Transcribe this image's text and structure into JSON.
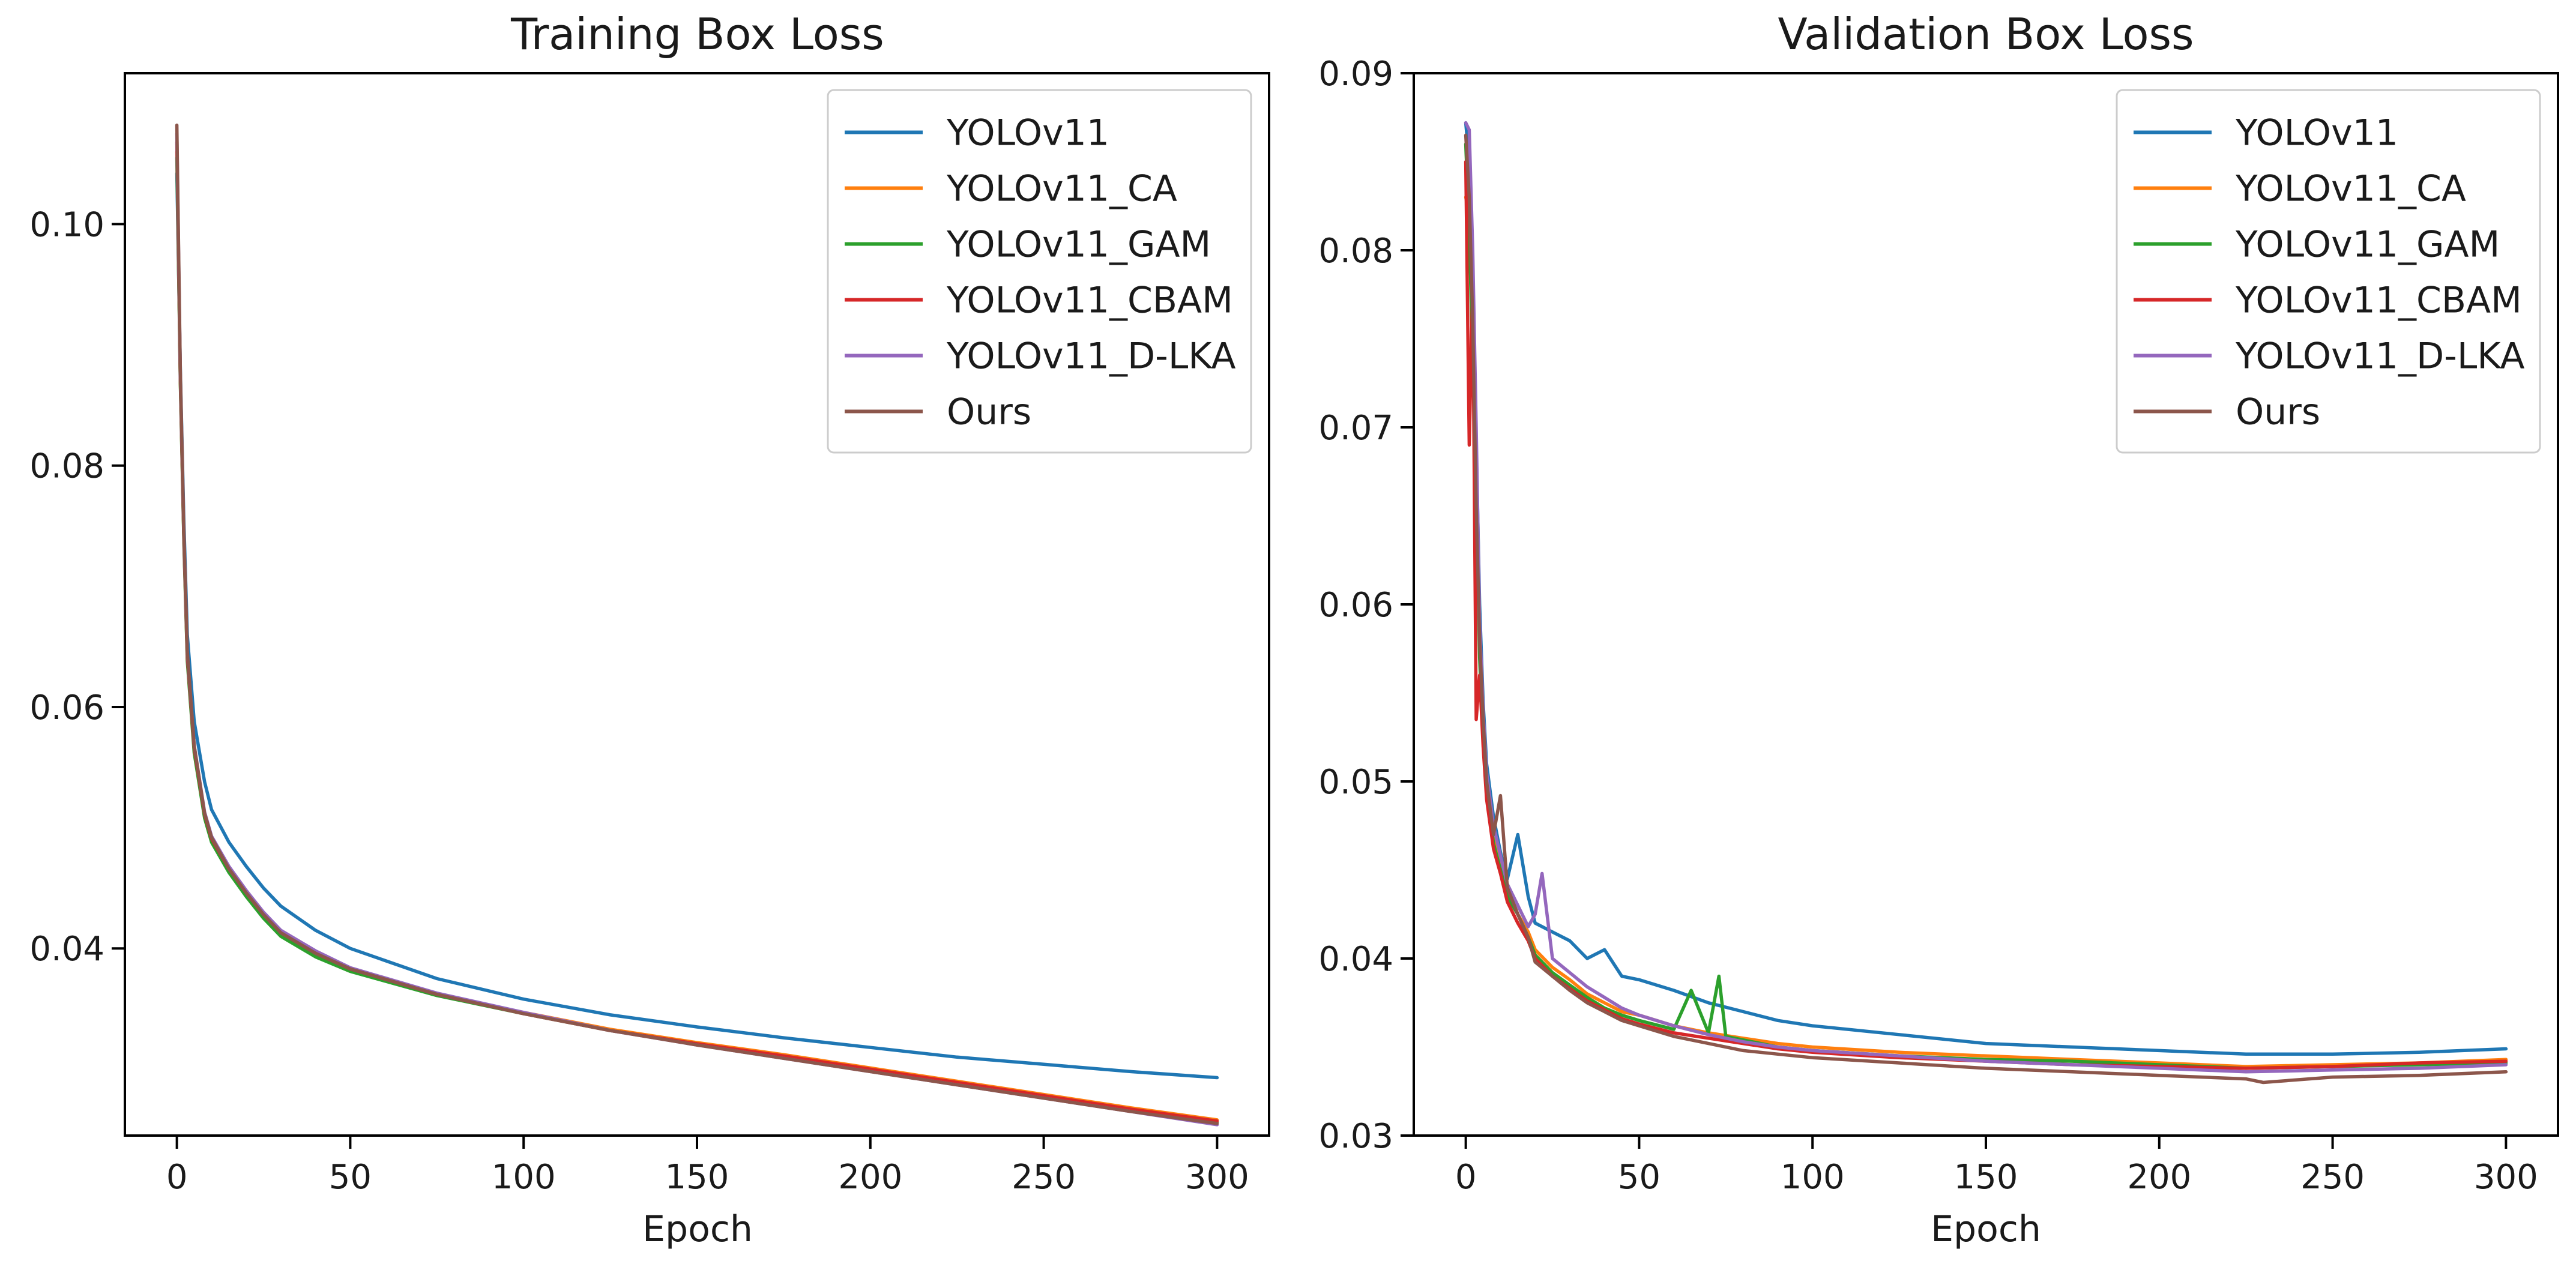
{
  "chart_data": [
    {
      "type": "line",
      "title": "Training Box Loss",
      "xlabel": "Epoch",
      "ylabel": "",
      "xlim": [
        -15,
        315
      ],
      "ylim": [
        0.0245,
        0.1125
      ],
      "xticks": [
        0,
        50,
        100,
        150,
        200,
        250,
        300
      ],
      "xtick_labels": [
        "0",
        "50",
        "100",
        "150",
        "200",
        "250",
        "300"
      ],
      "yticks": [
        0.04,
        0.06,
        0.08,
        0.1
      ],
      "ytick_labels": [
        "0.04",
        "0.06",
        "0.08",
        "0.10"
      ],
      "legend_position": "top-right",
      "grid": false,
      "series": [
        {
          "name": "YOLOv11",
          "color": "#1f77b4",
          "x": [
            0,
            1,
            2,
            3,
            5,
            8,
            10,
            15,
            20,
            25,
            30,
            40,
            50,
            75,
            100,
            125,
            150,
            175,
            200,
            225,
            250,
            275,
            300
          ],
          "values": [
            0.1042,
            0.088,
            0.0755,
            0.066,
            0.0588,
            0.0538,
            0.0515,
            0.0488,
            0.0468,
            0.045,
            0.0435,
            0.0415,
            0.04,
            0.0375,
            0.0358,
            0.0345,
            0.0335,
            0.0326,
            0.0318,
            0.031,
            0.0304,
            0.0298,
            0.0293
          ]
        },
        {
          "name": "YOLOv11_CA",
          "color": "#ff7f0e",
          "x": [
            0,
            1,
            2,
            3,
            5,
            8,
            10,
            15,
            20,
            25,
            30,
            40,
            50,
            75,
            100,
            125,
            150,
            175,
            200,
            225,
            250,
            275,
            300
          ],
          "values": [
            0.106,
            0.087,
            0.074,
            0.064,
            0.0565,
            0.051,
            0.049,
            0.0465,
            0.0445,
            0.0427,
            0.0412,
            0.0395,
            0.0382,
            0.0362,
            0.0347,
            0.0333,
            0.0322,
            0.0312,
            0.0301,
            0.029,
            0.0279,
            0.0268,
            0.0258
          ]
        },
        {
          "name": "YOLOv11_GAM",
          "color": "#2ca02c",
          "x": [
            0,
            1,
            2,
            3,
            5,
            8,
            10,
            15,
            20,
            25,
            30,
            40,
            50,
            75,
            100,
            125,
            150,
            175,
            200,
            225,
            250,
            275,
            300
          ],
          "values": [
            0.1055,
            0.0868,
            0.0738,
            0.0638,
            0.0562,
            0.0508,
            0.0488,
            0.0463,
            0.0443,
            0.0425,
            0.041,
            0.0393,
            0.0381,
            0.0361,
            0.0346,
            0.0332,
            0.0321,
            0.031,
            0.0299,
            0.0288,
            0.0277,
            0.0266,
            0.0256
          ]
        },
        {
          "name": "YOLOv11_CBAM",
          "color": "#d62728",
          "x": [
            0,
            1,
            2,
            3,
            5,
            8,
            10,
            15,
            20,
            25,
            30,
            40,
            50,
            75,
            100,
            125,
            150,
            175,
            200,
            225,
            250,
            275,
            300
          ],
          "values": [
            0.1068,
            0.0872,
            0.0742,
            0.0642,
            0.0566,
            0.0511,
            0.0491,
            0.0466,
            0.0446,
            0.0428,
            0.0413,
            0.0396,
            0.0383,
            0.0362,
            0.0346,
            0.0332,
            0.0321,
            0.0311,
            0.03,
            0.0289,
            0.0278,
            0.0267,
            0.0257
          ]
        },
        {
          "name": "YOLOv11_D-LKA",
          "color": "#9467bd",
          "x": [
            0,
            1,
            2,
            3,
            5,
            8,
            10,
            15,
            20,
            25,
            30,
            40,
            50,
            75,
            100,
            125,
            150,
            175,
            200,
            225,
            250,
            275,
            300
          ],
          "values": [
            0.1075,
            0.0875,
            0.0745,
            0.0645,
            0.0568,
            0.0513,
            0.0493,
            0.0468,
            0.0448,
            0.043,
            0.0415,
            0.0398,
            0.0384,
            0.0363,
            0.0347,
            0.0332,
            0.032,
            0.0309,
            0.0298,
            0.0287,
            0.0276,
            0.0265,
            0.0254
          ]
        },
        {
          "name": "Ours",
          "color": "#8c564b",
          "x": [
            0,
            1,
            2,
            3,
            5,
            8,
            10,
            15,
            20,
            25,
            30,
            40,
            50,
            75,
            100,
            125,
            150,
            175,
            200,
            225,
            250,
            275,
            300
          ],
          "values": [
            0.1082,
            0.0878,
            0.0746,
            0.0646,
            0.0568,
            0.0512,
            0.0492,
            0.0466,
            0.0446,
            0.0428,
            0.0413,
            0.0396,
            0.0383,
            0.0362,
            0.0346,
            0.0332,
            0.032,
            0.0309,
            0.0298,
            0.0287,
            0.0276,
            0.0265,
            0.0255
          ]
        }
      ]
    },
    {
      "type": "line",
      "title": "Validation Box Loss",
      "xlabel": "Epoch",
      "ylabel": "",
      "xlim": [
        -15,
        315
      ],
      "ylim": [
        0.03,
        0.09
      ],
      "xticks": [
        0,
        50,
        100,
        150,
        200,
        250,
        300
      ],
      "xtick_labels": [
        "0",
        "50",
        "100",
        "150",
        "200",
        "250",
        "300"
      ],
      "yticks": [
        0.03,
        0.04,
        0.05,
        0.06,
        0.07,
        0.08,
        0.09
      ],
      "ytick_labels": [
        "0.03",
        "0.04",
        "0.05",
        "0.06",
        "0.07",
        "0.08",
        "0.09"
      ],
      "legend_position": "top-right",
      "grid": false,
      "series": [
        {
          "name": "YOLOv11",
          "color": "#1f77b4",
          "x": [
            0,
            1,
            2,
            3,
            4,
            5,
            6,
            8,
            10,
            12,
            15,
            18,
            20,
            25,
            30,
            35,
            40,
            45,
            50,
            60,
            70,
            80,
            90,
            100,
            125,
            150,
            175,
            200,
            225,
            250,
            275,
            300
          ],
          "values": [
            0.0872,
            0.085,
            0.079,
            0.069,
            0.06,
            0.0545,
            0.051,
            0.048,
            0.046,
            0.0445,
            0.047,
            0.0435,
            0.042,
            0.0415,
            0.041,
            0.04,
            0.0405,
            0.039,
            0.0388,
            0.0382,
            0.0375,
            0.037,
            0.0365,
            0.0362,
            0.0357,
            0.0352,
            0.035,
            0.0348,
            0.0346,
            0.0346,
            0.0347,
            0.0349
          ]
        },
        {
          "name": "YOLOv11_CA",
          "color": "#ff7f0e",
          "x": [
            0,
            1,
            2,
            3,
            4,
            5,
            6,
            8,
            10,
            12,
            15,
            18,
            20,
            25,
            30,
            35,
            40,
            45,
            50,
            60,
            70,
            80,
            90,
            100,
            125,
            150,
            175,
            200,
            225,
            250,
            275,
            300
          ],
          "values": [
            0.083,
            0.082,
            0.076,
            0.068,
            0.058,
            0.053,
            0.05,
            0.047,
            0.0455,
            0.044,
            0.0425,
            0.0415,
            0.0405,
            0.0395,
            0.0388,
            0.038,
            0.0375,
            0.037,
            0.0368,
            0.0362,
            0.0358,
            0.0355,
            0.0352,
            0.035,
            0.0347,
            0.0345,
            0.0343,
            0.0341,
            0.0339,
            0.034,
            0.0341,
            0.0343
          ]
        },
        {
          "name": "YOLOv11_GAM",
          "color": "#2ca02c",
          "x": [
            0,
            1,
            2,
            3,
            4,
            5,
            6,
            8,
            10,
            12,
            15,
            18,
            20,
            25,
            30,
            35,
            40,
            45,
            50,
            60,
            65,
            70,
            73,
            75,
            80,
            90,
            100,
            125,
            150,
            175,
            200,
            225,
            250,
            275,
            300
          ],
          "values": [
            0.086,
            0.081,
            0.074,
            0.066,
            0.057,
            0.0525,
            0.0495,
            0.0465,
            0.045,
            0.0435,
            0.0425,
            0.0412,
            0.0402,
            0.0392,
            0.0385,
            0.0378,
            0.0372,
            0.0368,
            0.0365,
            0.036,
            0.0382,
            0.0358,
            0.039,
            0.0356,
            0.0354,
            0.035,
            0.0348,
            0.0345,
            0.0343,
            0.0342,
            0.034,
            0.0338,
            0.0339,
            0.034,
            0.0341
          ]
        },
        {
          "name": "YOLOv11_CBAM",
          "color": "#d62728",
          "x": [
            0,
            1,
            2,
            3,
            4,
            5,
            6,
            8,
            10,
            12,
            15,
            18,
            20,
            25,
            30,
            35,
            40,
            45,
            50,
            60,
            70,
            80,
            90,
            100,
            125,
            150,
            175,
            200,
            225,
            250,
            275,
            300
          ],
          "values": [
            0.085,
            0.069,
            0.078,
            0.0535,
            0.056,
            0.052,
            0.049,
            0.0462,
            0.0448,
            0.0432,
            0.042,
            0.041,
            0.04,
            0.039,
            0.0383,
            0.0376,
            0.0371,
            0.0366,
            0.0363,
            0.0358,
            0.0355,
            0.0352,
            0.0349,
            0.0347,
            0.0344,
            0.0342,
            0.034,
            0.0339,
            0.0338,
            0.0339,
            0.0341,
            0.0342
          ]
        },
        {
          "name": "YOLOv11_D-LKA",
          "color": "#9467bd",
          "x": [
            0,
            1,
            2,
            3,
            4,
            5,
            6,
            8,
            10,
            12,
            15,
            18,
            20,
            22,
            25,
            30,
            35,
            40,
            45,
            50,
            60,
            70,
            80,
            90,
            100,
            125,
            150,
            175,
            200,
            225,
            250,
            275,
            300
          ],
          "values": [
            0.0872,
            0.0868,
            0.08,
            0.07,
            0.059,
            0.054,
            0.0505,
            0.0475,
            0.0458,
            0.0442,
            0.043,
            0.0418,
            0.0425,
            0.0448,
            0.04,
            0.0392,
            0.0384,
            0.0378,
            0.0372,
            0.0368,
            0.0362,
            0.0357,
            0.0353,
            0.035,
            0.0348,
            0.0345,
            0.0342,
            0.034,
            0.0338,
            0.0336,
            0.0337,
            0.0338,
            0.034
          ]
        },
        {
          "name": "Ours",
          "color": "#8c564b",
          "x": [
            0,
            1,
            2,
            3,
            4,
            5,
            6,
            8,
            10,
            12,
            15,
            18,
            20,
            25,
            30,
            35,
            40,
            45,
            50,
            60,
            70,
            80,
            90,
            100,
            125,
            150,
            175,
            200,
            225,
            230,
            250,
            275,
            300
          ],
          "values": [
            0.0865,
            0.083,
            0.076,
            0.0655,
            0.058,
            0.0535,
            0.05,
            0.047,
            0.0492,
            0.044,
            0.0425,
            0.0412,
            0.0398,
            0.039,
            0.0382,
            0.0375,
            0.037,
            0.0365,
            0.0362,
            0.0356,
            0.0352,
            0.0348,
            0.0346,
            0.0344,
            0.0341,
            0.0338,
            0.0336,
            0.0334,
            0.0332,
            0.033,
            0.0333,
            0.0334,
            0.0336
          ]
        }
      ]
    }
  ]
}
